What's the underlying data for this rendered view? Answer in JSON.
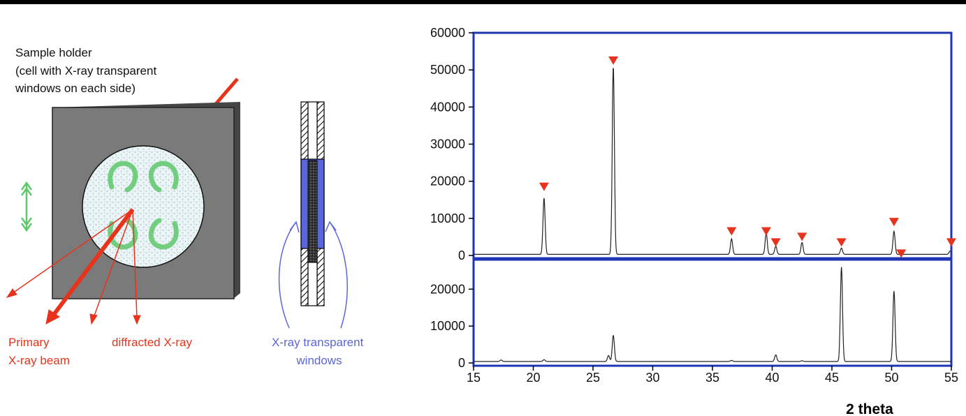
{
  "diagram": {
    "sample_holder_label": [
      "Sample holder",
      "(cell with X-ray transparent",
      "windows on each side)"
    ],
    "primary_beam_label": [
      "Primary",
      "X-ray beam"
    ],
    "diffracted_label": "diffracted X-ray",
    "windows_label": [
      "X-ray transparent",
      "windows"
    ],
    "colors": {
      "holder": "#7a7a7a",
      "beam": "#e8331c",
      "rotation": "#5ec86b",
      "windows": "#5b66d8",
      "axis": "#1f35b5",
      "marker": "#e8331c"
    }
  },
  "chart_data": [
    {
      "type": "line",
      "panel": "top",
      "xlim": [
        15,
        55
      ],
      "ylim": [
        0,
        60000
      ],
      "yticks": [
        0,
        10000,
        20000,
        30000,
        40000,
        50000,
        60000
      ],
      "baseline": 300,
      "peaks": [
        {
          "x": 20.9,
          "y": 15500
        },
        {
          "x": 26.7,
          "y": 51000
        },
        {
          "x": 36.6,
          "y": 4500
        },
        {
          "x": 39.5,
          "y": 6000
        },
        {
          "x": 40.3,
          "y": 2500
        },
        {
          "x": 42.5,
          "y": 3500
        },
        {
          "x": 45.8,
          "y": 2000
        },
        {
          "x": 50.2,
          "y": 6500
        },
        {
          "x": 54.9,
          "y": 1200
        }
      ],
      "markers": [
        {
          "x": 20.9,
          "y": 18500
        },
        {
          "x": 26.7,
          "y": 52500
        },
        {
          "x": 36.6,
          "y": 6500
        },
        {
          "x": 39.5,
          "y": 6500
        },
        {
          "x": 40.3,
          "y": 3500
        },
        {
          "x": 42.5,
          "y": 5000
        },
        {
          "x": 45.8,
          "y": 3500
        },
        {
          "x": 50.2,
          "y": 9000
        },
        {
          "x": 50.8,
          "y": 500
        },
        {
          "x": 55.0,
          "y": 3500
        }
      ]
    },
    {
      "type": "line",
      "panel": "bottom",
      "xlim": [
        15,
        55
      ],
      "ylim": [
        0,
        28000
      ],
      "yticks": [
        0,
        10000,
        20000
      ],
      "xticks": [
        15,
        20,
        25,
        30,
        35,
        40,
        45,
        50,
        55
      ],
      "xlabel": "2 theta",
      "baseline": 400,
      "peaks": [
        {
          "x": 17.3,
          "y": 800
        },
        {
          "x": 20.9,
          "y": 900
        },
        {
          "x": 26.3,
          "y": 2000
        },
        {
          "x": 26.7,
          "y": 7500
        },
        {
          "x": 36.6,
          "y": 700
        },
        {
          "x": 40.3,
          "y": 2200
        },
        {
          "x": 42.5,
          "y": 600
        },
        {
          "x": 45.8,
          "y": 26000
        },
        {
          "x": 50.2,
          "y": 19500
        }
      ]
    }
  ]
}
